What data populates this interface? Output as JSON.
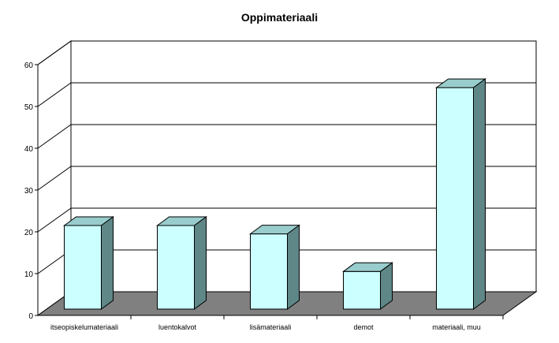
{
  "chart_data": {
    "type": "bar",
    "title": "Oppimateriaali",
    "categories": [
      "itseopiskelumateriaali",
      "luentokalvot",
      "lisämateriaali",
      "demot",
      "materiaali, muu"
    ],
    "values": [
      20,
      20,
      18,
      9,
      53
    ],
    "ylim": [
      0,
      60
    ],
    "yticks": [
      0,
      10,
      20,
      30,
      40,
      50,
      60
    ],
    "xlabel": "",
    "ylabel": "",
    "grid": true,
    "legend": "none",
    "style": "3d-columns"
  },
  "colors": {
    "bar_front": "#ccffff",
    "bar_top": "#99cccc",
    "bar_side": "#5f8787",
    "floor": "#808080",
    "wall": "#ffffff",
    "grid": "#000000"
  }
}
